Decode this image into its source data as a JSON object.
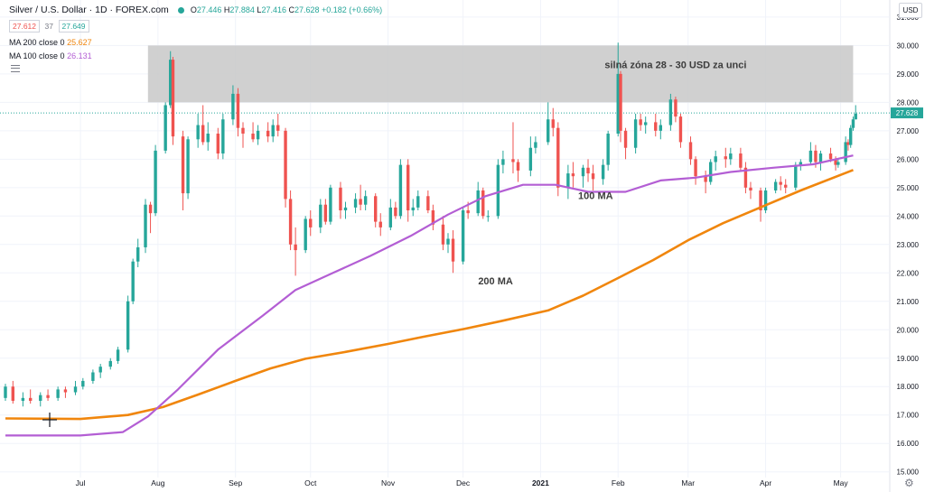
{
  "header": {
    "symbol_title": "Silver / U.S. Dollar · 1D · FOREX.com",
    "bid": "27.612",
    "spread": "37",
    "ask": "27.649",
    "ohlc": {
      "open_label": "O",
      "open": "27.446",
      "high_label": "H",
      "high": "27.884",
      "low_label": "L",
      "low": "27.416",
      "close_label": "C",
      "close": "27.628",
      "change": "+0.182 (+0.66%)"
    },
    "ma200_label": "MA 200 close 0",
    "ma200_value": "25.627",
    "ma100_label": "MA 100 close 0",
    "ma100_value": "26.131",
    "currency_button": "USD"
  },
  "colors": {
    "up": "#26a69a",
    "down": "#ef5350",
    "ma200": "#f0860d",
    "ma100": "#b35ed4",
    "zone": "#c8c8c8",
    "grid": "#f0f3fa",
    "price_line": "#26a69a"
  },
  "icons": {
    "legend_status": "dot-icon",
    "hide_legend": "eye-icon",
    "settings": "gear-icon",
    "crosshair": "crosshair-icon"
  },
  "chart_data": {
    "type": "candlestick",
    "title": "Silver / U.S. Dollar · 1D · FOREX.com",
    "x_tick_labels": [
      "Jul",
      "Aug",
      "Sep",
      "Oct",
      "Nov",
      "Dec",
      "2021",
      "Feb",
      "Mar",
      "Apr",
      "May"
    ],
    "y_tick_labels": [
      "15.000",
      "16.000",
      "17.000",
      "18.000",
      "19.000",
      "20.000",
      "21.000",
      "22.000",
      "23.000",
      "24.000",
      "25.000",
      "26.000",
      "27.000",
      "28.000",
      "29.000",
      "30.000",
      "31.000"
    ],
    "ylim": [
      14.8,
      31.6
    ],
    "x_range": [
      "2020-06-01",
      "2021-05-08"
    ],
    "current_price": 27.628,
    "current_price_label": "27.628",
    "zone": {
      "low": 28.0,
      "high": 30.0,
      "from": "2020-07-28",
      "to": "2021-05-06"
    },
    "annotations": [
      {
        "text": "silná zóna 28 - 30 USD za unci",
        "date": "2021-02-24",
        "y": 29.2
      },
      {
        "text": "100 MA",
        "date": "2021-01-23",
        "y": 24.6
      },
      {
        "text": "200 MA",
        "date": "2020-12-14",
        "y": 21.6
      }
    ],
    "series": [
      {
        "name": "MA 200 close 0",
        "points": [
          [
            "2020-06-01",
            16.88
          ],
          [
            "2020-07-01",
            16.86
          ],
          [
            "2020-07-20",
            17.0
          ],
          [
            "2020-08-03",
            17.28
          ],
          [
            "2020-08-17",
            17.72
          ],
          [
            "2020-09-01",
            18.2
          ],
          [
            "2020-09-15",
            18.64
          ],
          [
            "2020-09-29",
            18.98
          ],
          [
            "2020-10-15",
            19.22
          ],
          [
            "2020-11-01",
            19.5
          ],
          [
            "2020-11-15",
            19.75
          ],
          [
            "2020-12-01",
            20.02
          ],
          [
            "2020-12-16",
            20.3
          ],
          [
            "2021-01-04",
            20.68
          ],
          [
            "2021-01-18",
            21.2
          ],
          [
            "2021-02-01",
            21.82
          ],
          [
            "2021-02-15",
            22.45
          ],
          [
            "2021-03-01",
            23.15
          ],
          [
            "2021-03-15",
            23.75
          ],
          [
            "2021-04-01",
            24.38
          ],
          [
            "2021-04-15",
            24.9
          ],
          [
            "2021-05-06",
            25.62
          ]
        ]
      },
      {
        "name": "MA 100 close 0",
        "points": [
          [
            "2020-06-01",
            16.28
          ],
          [
            "2020-07-01",
            16.28
          ],
          [
            "2020-07-18",
            16.4
          ],
          [
            "2020-07-28",
            16.95
          ],
          [
            "2020-08-09",
            17.9
          ],
          [
            "2020-08-25",
            19.3
          ],
          [
            "2020-09-12",
            20.5
          ],
          [
            "2020-09-25",
            21.4
          ],
          [
            "2020-10-10",
            22.0
          ],
          [
            "2020-10-25",
            22.6
          ],
          [
            "2020-11-10",
            23.3
          ],
          [
            "2020-11-25",
            24.05
          ],
          [
            "2020-12-10",
            24.7
          ],
          [
            "2020-12-25",
            25.1
          ],
          [
            "2021-01-07",
            25.1
          ],
          [
            "2021-01-20",
            24.85
          ],
          [
            "2021-02-04",
            24.85
          ],
          [
            "2021-02-18",
            25.25
          ],
          [
            "2021-03-04",
            25.35
          ],
          [
            "2021-03-18",
            25.55
          ],
          [
            "2021-04-04",
            25.7
          ],
          [
            "2021-04-20",
            25.82
          ],
          [
            "2021-05-06",
            26.13
          ]
        ]
      }
    ],
    "candles": {
      "fields": [
        "date",
        "open",
        "high",
        "low",
        "close"
      ],
      "rows": [
        [
          "2020-06-01",
          17.6,
          18.1,
          17.5,
          18.0
        ],
        [
          "2020-06-04",
          18.0,
          18.2,
          17.4,
          17.5
        ],
        [
          "2020-06-08",
          17.5,
          17.8,
          17.3,
          17.6
        ],
        [
          "2020-06-11",
          17.6,
          17.9,
          17.4,
          17.5
        ],
        [
          "2020-06-15",
          17.5,
          17.8,
          17.3,
          17.7
        ],
        [
          "2020-06-18",
          17.7,
          17.9,
          17.5,
          17.6
        ],
        [
          "2020-06-22",
          17.6,
          18.0,
          17.5,
          17.9
        ],
        [
          "2020-06-25",
          17.9,
          18.0,
          17.6,
          17.8
        ],
        [
          "2020-06-29",
          17.8,
          18.2,
          17.7,
          18.0
        ],
        [
          "2020-07-02",
          18.0,
          18.3,
          17.9,
          18.2
        ],
        [
          "2020-07-06",
          18.2,
          18.6,
          18.1,
          18.5
        ],
        [
          "2020-07-09",
          18.5,
          18.8,
          18.3,
          18.7
        ],
        [
          "2020-07-13",
          18.7,
          19.0,
          18.6,
          18.9
        ],
        [
          "2020-07-16",
          18.9,
          19.4,
          18.8,
          19.3
        ],
        [
          "2020-07-20",
          19.3,
          21.2,
          19.2,
          21.0
        ],
        [
          "2020-07-22",
          21.0,
          22.5,
          20.9,
          22.4
        ],
        [
          "2020-07-24",
          22.4,
          23.2,
          22.2,
          22.9
        ],
        [
          "2020-07-27",
          22.9,
          24.6,
          22.7,
          24.4
        ],
        [
          "2020-07-29",
          24.4,
          24.5,
          23.4,
          24.1
        ],
        [
          "2020-07-31",
          24.1,
          26.5,
          24.0,
          26.3
        ],
        [
          "2020-08-04",
          26.3,
          28.0,
          26.2,
          27.9
        ],
        [
          "2020-08-06",
          27.9,
          29.8,
          27.8,
          29.5
        ],
        [
          "2020-08-07",
          29.5,
          29.6,
          26.5,
          26.8
        ],
        [
          "2020-08-11",
          26.8,
          27.0,
          24.2,
          24.8
        ],
        [
          "2020-08-13",
          24.8,
          26.8,
          24.6,
          26.7
        ],
        [
          "2020-08-17",
          26.7,
          27.6,
          26.4,
          27.2
        ],
        [
          "2020-08-19",
          27.2,
          27.9,
          26.5,
          26.6
        ],
        [
          "2020-08-21",
          26.6,
          27.3,
          26.3,
          26.9
        ],
        [
          "2020-08-25",
          26.9,
          27.1,
          26.0,
          26.2
        ],
        [
          "2020-08-27",
          26.2,
          27.6,
          26.0,
          27.4
        ],
        [
          "2020-08-31",
          27.4,
          28.6,
          27.2,
          28.3
        ],
        [
          "2020-09-02",
          28.3,
          28.5,
          26.8,
          27.1
        ],
        [
          "2020-09-04",
          27.1,
          27.3,
          26.4,
          26.9
        ],
        [
          "2020-09-08",
          26.9,
          27.3,
          26.6,
          26.7
        ],
        [
          "2020-09-10",
          26.7,
          27.2,
          26.5,
          27.0
        ],
        [
          "2020-09-14",
          27.0,
          27.3,
          26.6,
          26.8
        ],
        [
          "2020-09-16",
          26.8,
          27.4,
          26.6,
          27.2
        ],
        [
          "2020-09-18",
          27.2,
          27.6,
          26.8,
          27.0
        ],
        [
          "2020-09-21",
          27.0,
          27.1,
          24.3,
          24.6
        ],
        [
          "2020-09-23",
          24.6,
          24.9,
          22.8,
          23.0
        ],
        [
          "2020-09-25",
          23.0,
          23.6,
          21.9,
          22.8
        ],
        [
          "2020-09-29",
          22.8,
          24.0,
          22.7,
          23.9
        ],
        [
          "2020-10-01",
          23.9,
          24.2,
          23.3,
          23.6
        ],
        [
          "2020-10-05",
          23.6,
          24.6,
          23.4,
          24.4
        ],
        [
          "2020-10-07",
          24.4,
          24.6,
          23.7,
          23.8
        ],
        [
          "2020-10-09",
          23.8,
          25.1,
          23.7,
          25.0
        ],
        [
          "2020-10-13",
          25.0,
          25.2,
          23.9,
          24.2
        ],
        [
          "2020-10-15",
          24.2,
          24.5,
          23.9,
          24.3
        ],
        [
          "2020-10-19",
          24.3,
          24.8,
          24.1,
          24.6
        ],
        [
          "2020-10-21",
          24.6,
          25.1,
          24.2,
          24.4
        ],
        [
          "2020-10-23",
          24.4,
          24.9,
          24.2,
          24.7
        ],
        [
          "2020-10-27",
          24.7,
          24.8,
          23.6,
          23.8
        ],
        [
          "2020-10-29",
          23.8,
          24.1,
          23.3,
          23.6
        ],
        [
          "2020-11-02",
          23.6,
          24.6,
          23.5,
          24.3
        ],
        [
          "2020-11-04",
          24.3,
          24.5,
          23.9,
          24.0
        ],
        [
          "2020-11-06",
          24.0,
          26.0,
          23.9,
          25.8
        ],
        [
          "2020-11-09",
          25.8,
          26.0,
          23.8,
          24.2
        ],
        [
          "2020-11-11",
          24.2,
          24.6,
          24.0,
          24.3
        ],
        [
          "2020-11-13",
          24.3,
          24.9,
          24.2,
          24.7
        ],
        [
          "2020-11-17",
          24.7,
          24.9,
          24.1,
          24.2
        ],
        [
          "2020-11-19",
          24.2,
          24.4,
          23.5,
          23.7
        ],
        [
          "2020-11-23",
          23.7,
          24.0,
          22.8,
          23.0
        ],
        [
          "2020-11-25",
          23.0,
          23.4,
          22.7,
          23.2
        ],
        [
          "2020-11-27",
          23.2,
          23.5,
          22.0,
          22.4
        ],
        [
          "2020-12-01",
          22.4,
          24.3,
          22.3,
          24.2
        ],
        [
          "2020-12-03",
          24.2,
          24.5,
          23.9,
          24.1
        ],
        [
          "2020-12-07",
          24.1,
          25.2,
          24.0,
          24.9
        ],
        [
          "2020-12-09",
          24.9,
          25.0,
          23.9,
          24.0
        ],
        [
          "2020-12-11",
          24.0,
          24.2,
          23.8,
          24.0
        ],
        [
          "2020-12-15",
          24.0,
          26.0,
          23.9,
          25.8
        ],
        [
          "2020-12-17",
          25.8,
          26.3,
          25.5,
          26.0
        ],
        [
          "2020-12-21",
          26.0,
          27.3,
          25.5,
          25.9
        ],
        [
          "2020-12-23",
          25.9,
          26.0,
          25.2,
          25.6
        ],
        [
          "2020-12-28",
          25.6,
          26.8,
          25.4,
          26.4
        ],
        [
          "2020-12-30",
          26.4,
          26.8,
          26.2,
          26.6
        ],
        [
          "2021-01-04",
          26.6,
          28.0,
          26.5,
          27.4
        ],
        [
          "2021-01-06",
          27.4,
          27.8,
          26.8,
          27.1
        ],
        [
          "2021-01-08",
          27.1,
          27.3,
          24.7,
          25.0
        ],
        [
          "2021-01-12",
          25.0,
          25.8,
          24.6,
          25.5
        ],
        [
          "2021-01-14",
          25.5,
          25.9,
          25.0,
          25.4
        ],
        [
          "2021-01-18",
          25.4,
          25.8,
          25.0,
          25.7
        ],
        [
          "2021-01-20",
          25.7,
          26.0,
          25.2,
          25.5
        ],
        [
          "2021-01-22",
          25.5,
          25.8,
          24.9,
          25.3
        ],
        [
          "2021-01-26",
          25.3,
          26.0,
          25.1,
          25.8
        ],
        [
          "2021-01-28",
          25.8,
          27.0,
          25.6,
          26.9
        ],
        [
          "2021-02-01",
          26.9,
          30.1,
          26.8,
          29.0
        ],
        [
          "2021-02-02",
          29.0,
          29.1,
          26.6,
          27.0
        ],
        [
          "2021-02-04",
          27.0,
          27.1,
          26.0,
          26.4
        ],
        [
          "2021-02-08",
          26.4,
          27.6,
          26.2,
          27.4
        ],
        [
          "2021-02-10",
          27.4,
          27.6,
          27.0,
          27.2
        ],
        [
          "2021-02-12",
          27.2,
          27.5,
          26.9,
          27.3
        ],
        [
          "2021-02-16",
          27.3,
          27.6,
          26.8,
          27.0
        ],
        [
          "2021-02-18",
          27.0,
          27.4,
          26.7,
          27.2
        ],
        [
          "2021-02-22",
          27.2,
          28.3,
          27.0,
          28.1
        ],
        [
          "2021-02-24",
          28.1,
          28.2,
          27.3,
          27.5
        ],
        [
          "2021-02-26",
          27.5,
          27.6,
          26.4,
          26.6
        ],
        [
          "2021-03-02",
          26.6,
          26.8,
          25.8,
          26.0
        ],
        [
          "2021-03-04",
          26.0,
          26.1,
          25.1,
          25.4
        ],
        [
          "2021-03-08",
          25.4,
          25.6,
          24.8,
          25.2
        ],
        [
          "2021-03-10",
          25.2,
          26.0,
          25.1,
          25.9
        ],
        [
          "2021-03-12",
          25.9,
          26.3,
          25.6,
          26.1
        ],
        [
          "2021-03-16",
          26.1,
          26.4,
          25.7,
          26.0
        ],
        [
          "2021-03-18",
          26.0,
          26.4,
          25.8,
          26.2
        ],
        [
          "2021-03-22",
          26.2,
          26.4,
          25.6,
          25.7
        ],
        [
          "2021-03-24",
          25.7,
          25.9,
          24.8,
          25.0
        ],
        [
          "2021-03-26",
          25.0,
          25.2,
          24.6,
          24.9
        ],
        [
          "2021-03-30",
          24.9,
          25.0,
          23.8,
          24.2
        ],
        [
          "2021-04-01",
          24.2,
          25.0,
          24.1,
          24.9
        ],
        [
          "2021-04-05",
          24.9,
          25.3,
          24.8,
          25.2
        ],
        [
          "2021-04-07",
          25.2,
          25.4,
          24.9,
          25.1
        ],
        [
          "2021-04-09",
          25.1,
          25.3,
          24.8,
          25.0
        ],
        [
          "2021-04-13",
          25.0,
          25.9,
          24.9,
          25.8
        ],
        [
          "2021-04-15",
          25.8,
          26.0,
          25.6,
          25.9
        ],
        [
          "2021-04-19",
          25.9,
          26.6,
          25.8,
          26.3
        ],
        [
          "2021-04-21",
          26.3,
          26.5,
          25.7,
          25.9
        ],
        [
          "2021-04-23",
          25.9,
          26.3,
          25.6,
          26.2
        ],
        [
          "2021-04-27",
          26.2,
          26.4,
          25.9,
          26.0
        ],
        [
          "2021-04-29",
          26.0,
          26.1,
          25.6,
          25.8
        ],
        [
          "2021-04-30",
          25.8,
          26.0,
          25.7,
          25.9
        ],
        [
          "2021-05-03",
          25.9,
          26.8,
          25.8,
          26.6
        ],
        [
          "2021-05-04",
          26.6,
          26.7,
          26.3,
          26.5
        ],
        [
          "2021-05-05",
          26.5,
          27.2,
          26.4,
          27.1
        ],
        [
          "2021-05-06",
          27.1,
          27.5,
          27.0,
          27.4
        ],
        [
          "2021-05-07",
          27.4,
          27.9,
          27.4,
          27.6
        ]
      ]
    }
  }
}
